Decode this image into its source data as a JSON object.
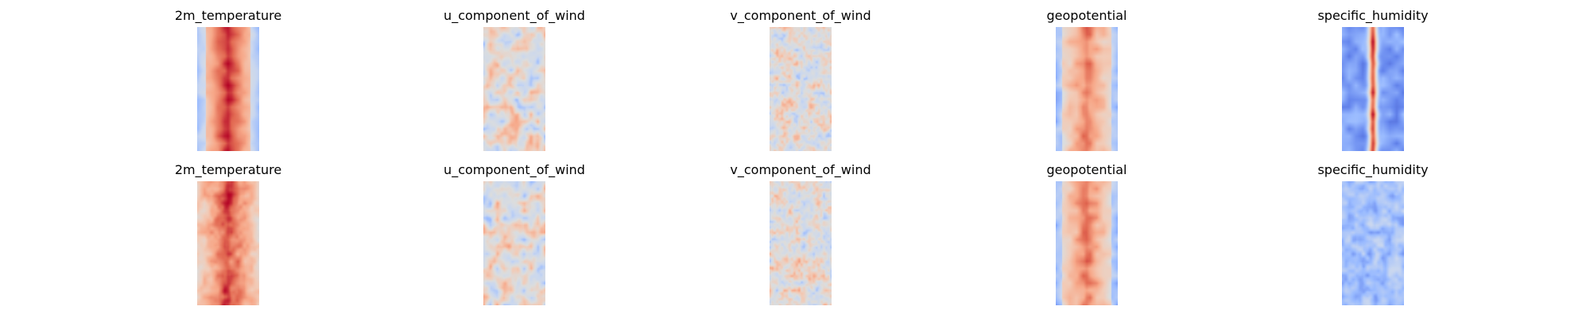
{
  "figure": {
    "colormap": "coolwarm",
    "colormap_stops": [
      "#3b4cc0",
      "#6788ee",
      "#9abbff",
      "#c9d7f0",
      "#dcdddd",
      "#f2cbb7",
      "#f7a889",
      "#e26952",
      "#b40426"
    ],
    "rows": [
      {
        "row_index": 0,
        "panels": [
          {
            "title": "2m_temperature",
            "pattern": "warm-center"
          },
          {
            "title": "u_component_of_wind",
            "pattern": "mixed-light"
          },
          {
            "title": "v_component_of_wind",
            "pattern": "mixed-speckle"
          },
          {
            "title": "geopotential",
            "pattern": "warm-center-cool-edges"
          },
          {
            "title": "specific_humidity",
            "pattern": "cool-with-warm-stripe"
          }
        ]
      },
      {
        "row_index": 1,
        "panels": [
          {
            "title": "2m_temperature",
            "pattern": "warm-blocky"
          },
          {
            "title": "u_component_of_wind",
            "pattern": "mixed-light"
          },
          {
            "title": "v_component_of_wind",
            "pattern": "mixed-speckle"
          },
          {
            "title": "geopotential",
            "pattern": "warm-center-cool-edges"
          },
          {
            "title": "specific_humidity",
            "pattern": "cool-light"
          }
        ]
      }
    ]
  }
}
